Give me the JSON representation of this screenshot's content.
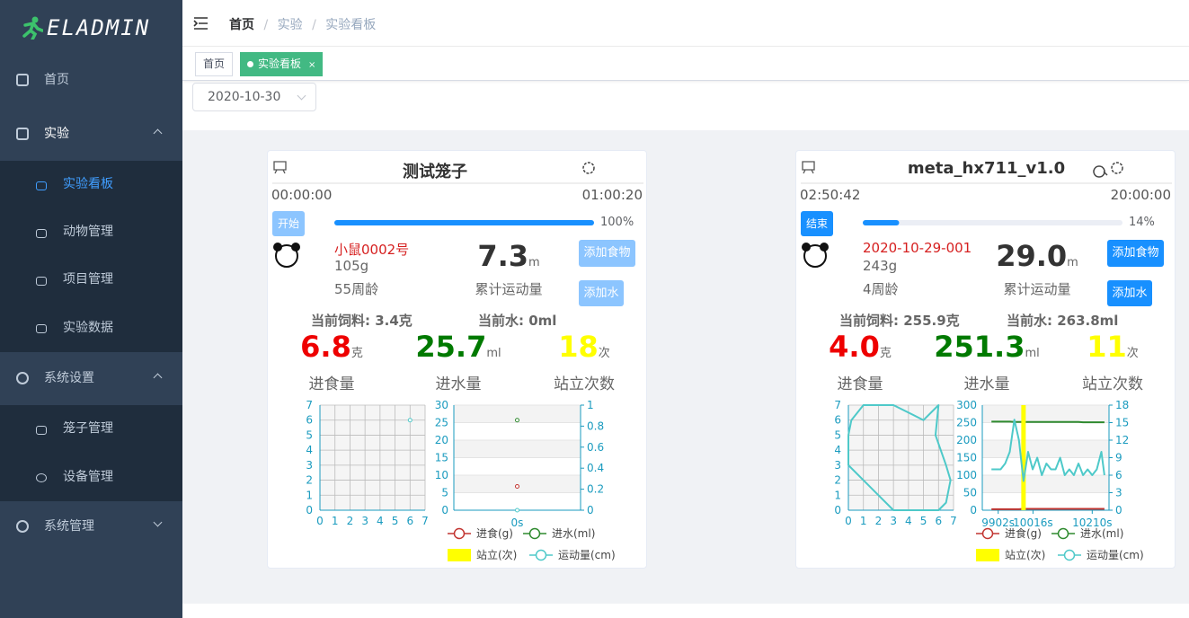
{
  "sidebar": {
    "logo": "ELADMIN",
    "menu": [
      {
        "label": "首页"
      },
      {
        "label": "实验",
        "children": [
          "实验看板",
          "动物管理",
          "项目管理",
          "实验数据"
        ]
      },
      {
        "label": "系统设置",
        "children": [
          "笼子管理",
          "设备管理"
        ]
      },
      {
        "label": "系统管理"
      }
    ]
  },
  "breadcrumb": [
    "首页",
    "实验",
    "实验看板"
  ],
  "tags": [
    "首页",
    "实验看板"
  ],
  "date": "2020-10-30",
  "cards": [
    {
      "title": "测试笼子",
      "start_time": "00:00:00",
      "end_time": "01:00:20",
      "button": "开始",
      "progress": {
        "value": 100,
        "label": "100%"
      },
      "animal_name": "小鼠0002号",
      "weight": "105g",
      "age": "55周龄",
      "distance": "7.3",
      "distance_unit": "m",
      "distance_label": "累计运动量",
      "add_food": "添加食物",
      "add_water": "添加水",
      "current_feed": "当前饲料: 3.4克",
      "current_water": "当前水: 0ml",
      "stats": [
        {
          "value": "6.8",
          "unit": "克",
          "label": "进食量",
          "color": "#ee0000"
        },
        {
          "value": "25.7",
          "unit": "ml",
          "label": "进水量",
          "color": "#007a00"
        },
        {
          "value": "18",
          "unit": "次",
          "label": "站立次数",
          "color": "#ffff00"
        }
      ],
      "trajectory": {
        "xlim": [
          0,
          7
        ],
        "ylim": [
          0,
          7
        ],
        "xticks": [
          0,
          1,
          2,
          3,
          4,
          5,
          6,
          7
        ],
        "yticks": [
          0,
          1,
          2,
          3,
          4,
          5,
          6,
          7
        ],
        "color": "#4ec9c9",
        "x": [
          6
        ],
        "y": [
          6
        ]
      },
      "timeline": {
        "categories": [
          "0s"
        ],
        "ylim": [
          0,
          30
        ],
        "yticks": [
          0,
          5,
          10,
          15,
          20,
          25,
          30
        ],
        "y2lim": [
          0,
          1
        ],
        "y2ticks": [
          0,
          0.2,
          0.4,
          0.6,
          0.8,
          1
        ],
        "series": [
          {
            "name": "进食(g)",
            "color": "#c23531",
            "values": [
              6.8
            ]
          },
          {
            "name": "进水(ml)",
            "color": "#2f8a2f",
            "values": [
              25.7
            ]
          },
          {
            "name": "站立(次)",
            "color": "#ffff00",
            "type": "bar",
            "axis": "y2",
            "values": [
              null
            ]
          },
          {
            "name": "运动量(cm)",
            "color": "#4ec9c9",
            "axis": "y2",
            "values": [
              0
            ]
          }
        ]
      }
    },
    {
      "title": "meta_hx711_v1.0",
      "start_time": "02:50:42",
      "end_time": "20:00:00",
      "button": "结束",
      "progress": {
        "value": 14,
        "label": "14%"
      },
      "animal_name": "2020-10-29-001",
      "weight": "243g",
      "age": "4周龄",
      "distance": "29.0",
      "distance_unit": "m",
      "distance_label": "累计运动量",
      "add_food": "添加食物",
      "add_water": "添加水",
      "current_feed": "当前饲料: 255.9克",
      "current_water": "当前水: 263.8ml",
      "stats": [
        {
          "value": "4.0",
          "unit": "克",
          "label": "进食量",
          "color": "#ee0000"
        },
        {
          "value": "251.3",
          "unit": "ml",
          "label": "进水量",
          "color": "#007a00"
        },
        {
          "value": "11",
          "unit": "次",
          "label": "站立次数",
          "color": "#ffff00"
        }
      ],
      "trajectory": {
        "xlim": [
          0,
          7
        ],
        "ylim": [
          0,
          7
        ],
        "xticks": [
          0,
          1,
          2,
          3,
          4,
          5,
          6,
          7
        ],
        "yticks": [
          0,
          1,
          2,
          3,
          4,
          5,
          6,
          7
        ],
        "color": "#4ec9c9",
        "x": [
          0,
          0.2,
          1,
          3,
          5,
          6,
          5.8,
          6.5,
          6.8,
          6.5,
          6,
          4,
          3,
          2,
          1,
          0,
          0
        ],
        "y": [
          5,
          6,
          7,
          7,
          6,
          7,
          5,
          3,
          2,
          0.5,
          0,
          0,
          0,
          1,
          2,
          3,
          5
        ]
      },
      "timeline": {
        "x": [
          9880,
          9895,
          9910,
          9925,
          9940,
          9955,
          9970,
          9985,
          10000,
          10015,
          10030,
          10045,
          10060,
          10075,
          10090,
          10105,
          10120,
          10135,
          10150,
          10165,
          10180,
          10195,
          10210,
          10225,
          10240,
          10250
        ],
        "xlim": [
          9850,
          10265
        ],
        "xticks": [
          {
            "value": 9902,
            "label": "9902s"
          },
          {
            "value": 10016,
            "label": "10016s"
          },
          {
            "value": 10210,
            "label": "10210s"
          }
        ],
        "ylim": [
          0,
          300
        ],
        "yticks": [
          0,
          50,
          100,
          150,
          200,
          250,
          300
        ],
        "y2lim": [
          0,
          18
        ],
        "y2ticks": [
          0,
          3,
          6,
          9,
          12,
          15,
          18
        ],
        "series": [
          {
            "name": "进食(g)",
            "color": "#c23531",
            "values": [
              3,
              3,
              3,
              3,
              3,
              3,
              3,
              4,
              4,
              4,
              4,
              4,
              4,
              4,
              4,
              4,
              4,
              4,
              4,
              4,
              4,
              4,
              4,
              4,
              4,
              4
            ]
          },
          {
            "name": "进水(ml)",
            "color": "#2f8a2f",
            "values": [
              253,
              253,
              253,
              253,
              253,
              252,
              252,
              252,
              252,
              252,
              252,
              252,
              252,
              252,
              252,
              252,
              252,
              252,
              252,
              252,
              251,
              251,
              251,
              251,
              251,
              251
            ]
          },
          {
            "name": "站立(次)",
            "color": "#ffff00",
            "type": "bar",
            "axis": "y2",
            "values": [
              null,
              null,
              null,
              null,
              null,
              null,
              null,
              18,
              null,
              null,
              null,
              null,
              null,
              null,
              null,
              null,
              null,
              null,
              null,
              null,
              null,
              null,
              null,
              null,
              null,
              null
            ]
          },
          {
            "name": "运动量(cm)",
            "color": "#4ec9c9",
            "axis": "y2",
            "values": [
              7,
              7,
              7,
              8,
              10,
              15.5,
              12,
              5,
              10,
              7,
              9,
              6,
              8,
              7,
              7,
              9,
              6,
              7,
              6,
              8,
              6,
              7,
              6,
              7,
              10,
              6
            ]
          }
        ]
      }
    }
  ]
}
